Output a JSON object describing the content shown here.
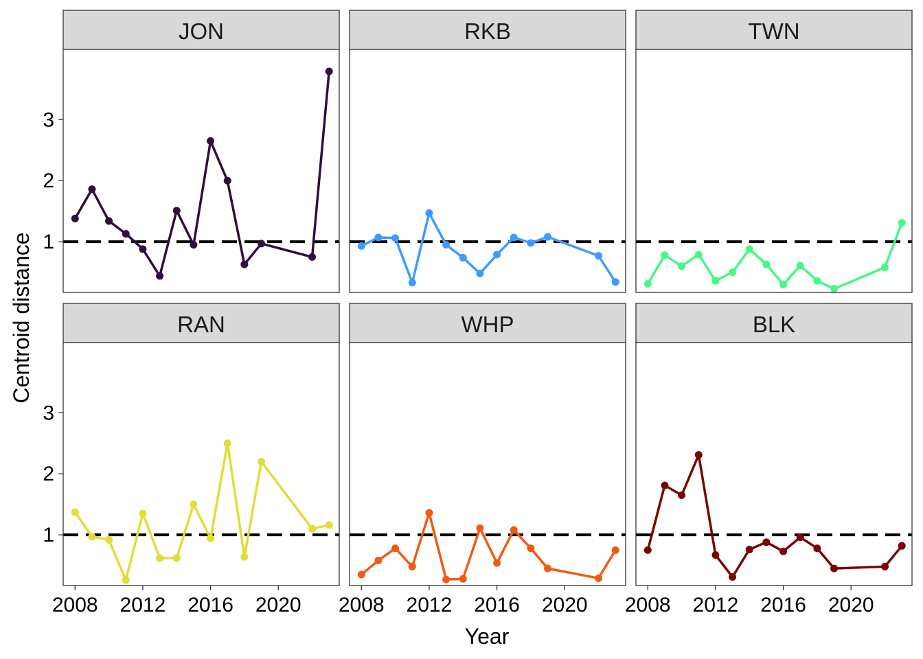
{
  "chart_data": {
    "type": "line",
    "layout": "facet-grid 2x3",
    "xlabel": "Year",
    "ylabel": "Centroid distance",
    "xlim": [
      2007.3,
      2023.6
    ],
    "ylim": [
      0.17,
      4.15
    ],
    "x_ticks": [
      2008,
      2012,
      2016,
      2020
    ],
    "y_ticks": [
      1,
      2,
      3
    ],
    "reference_line": {
      "y": 1,
      "style": "dashed",
      "color": "#000000"
    },
    "grid": false,
    "panels": [
      {
        "name": "JON",
        "color": "#2f0f3e",
        "points": [
          {
            "x": 2008,
            "y": 1.38
          },
          {
            "x": 2009,
            "y": 1.86
          },
          {
            "x": 2010,
            "y": 1.34
          },
          {
            "x": 2011,
            "y": 1.13
          },
          {
            "x": 2012,
            "y": 0.88
          },
          {
            "x": 2013,
            "y": 0.44
          },
          {
            "x": 2014,
            "y": 1.51
          },
          {
            "x": 2015,
            "y": 0.95
          },
          {
            "x": 2016,
            "y": 2.65
          },
          {
            "x": 2017,
            "y": 2.0
          },
          {
            "x": 2018,
            "y": 0.63
          },
          {
            "x": 2019,
            "y": 0.97
          },
          {
            "x": 2022,
            "y": 0.75
          },
          {
            "x": 2023,
            "y": 3.79
          }
        ]
      },
      {
        "name": "RKB",
        "color": "#3e9bfe",
        "points": [
          {
            "x": 2008,
            "y": 0.93
          },
          {
            "x": 2009,
            "y": 1.07
          },
          {
            "x": 2010,
            "y": 1.06
          },
          {
            "x": 2011,
            "y": 0.33
          },
          {
            "x": 2012,
            "y": 1.47
          },
          {
            "x": 2013,
            "y": 0.95
          },
          {
            "x": 2014,
            "y": 0.74
          },
          {
            "x": 2015,
            "y": 0.48
          },
          {
            "x": 2016,
            "y": 0.79
          },
          {
            "x": 2017,
            "y": 1.07
          },
          {
            "x": 2018,
            "y": 0.98
          },
          {
            "x": 2019,
            "y": 1.08
          },
          {
            "x": 2022,
            "y": 0.77
          },
          {
            "x": 2023,
            "y": 0.34
          }
        ]
      },
      {
        "name": "TWN",
        "color": "#46f884",
        "points": [
          {
            "x": 2008,
            "y": 0.31
          },
          {
            "x": 2009,
            "y": 0.78
          },
          {
            "x": 2010,
            "y": 0.6
          },
          {
            "x": 2011,
            "y": 0.79
          },
          {
            "x": 2012,
            "y": 0.36
          },
          {
            "x": 2013,
            "y": 0.5
          },
          {
            "x": 2014,
            "y": 0.88
          },
          {
            "x": 2015,
            "y": 0.63
          },
          {
            "x": 2016,
            "y": 0.3
          },
          {
            "x": 2017,
            "y": 0.61
          },
          {
            "x": 2018,
            "y": 0.36
          },
          {
            "x": 2019,
            "y": 0.23
          },
          {
            "x": 2022,
            "y": 0.58
          },
          {
            "x": 2023,
            "y": 1.31
          }
        ]
      },
      {
        "name": "RAN",
        "color": "#e1dd37",
        "points": [
          {
            "x": 2008,
            "y": 1.37
          },
          {
            "x": 2009,
            "y": 0.97
          },
          {
            "x": 2010,
            "y": 0.92
          },
          {
            "x": 2011,
            "y": 0.26
          },
          {
            "x": 2012,
            "y": 1.35
          },
          {
            "x": 2013,
            "y": 0.62
          },
          {
            "x": 2014,
            "y": 0.62
          },
          {
            "x": 2015,
            "y": 1.5
          },
          {
            "x": 2016,
            "y": 0.94
          },
          {
            "x": 2017,
            "y": 2.5
          },
          {
            "x": 2018,
            "y": 0.64
          },
          {
            "x": 2019,
            "y": 2.2
          },
          {
            "x": 2022,
            "y": 1.1
          },
          {
            "x": 2023,
            "y": 1.16
          }
        ]
      },
      {
        "name": "WHP",
        "color": "#f05b12",
        "points": [
          {
            "x": 2008,
            "y": 0.35
          },
          {
            "x": 2009,
            "y": 0.58
          },
          {
            "x": 2010,
            "y": 0.78
          },
          {
            "x": 2011,
            "y": 0.48
          },
          {
            "x": 2012,
            "y": 1.36
          },
          {
            "x": 2013,
            "y": 0.27
          },
          {
            "x": 2014,
            "y": 0.28
          },
          {
            "x": 2015,
            "y": 1.11
          },
          {
            "x": 2016,
            "y": 0.54
          },
          {
            "x": 2017,
            "y": 1.08
          },
          {
            "x": 2018,
            "y": 0.78
          },
          {
            "x": 2019,
            "y": 0.45
          },
          {
            "x": 2022,
            "y": 0.29
          },
          {
            "x": 2023,
            "y": 0.75
          }
        ]
      },
      {
        "name": "BLK",
        "color": "#7a0403",
        "points": [
          {
            "x": 2008,
            "y": 0.75
          },
          {
            "x": 2009,
            "y": 1.81
          },
          {
            "x": 2010,
            "y": 1.65
          },
          {
            "x": 2011,
            "y": 2.31
          },
          {
            "x": 2012,
            "y": 0.67
          },
          {
            "x": 2013,
            "y": 0.31
          },
          {
            "x": 2014,
            "y": 0.76
          },
          {
            "x": 2015,
            "y": 0.88
          },
          {
            "x": 2016,
            "y": 0.73
          },
          {
            "x": 2017,
            "y": 0.96
          },
          {
            "x": 2018,
            "y": 0.78
          },
          {
            "x": 2019,
            "y": 0.45
          },
          {
            "x": 2022,
            "y": 0.48
          },
          {
            "x": 2023,
            "y": 0.82
          }
        ]
      }
    ]
  }
}
